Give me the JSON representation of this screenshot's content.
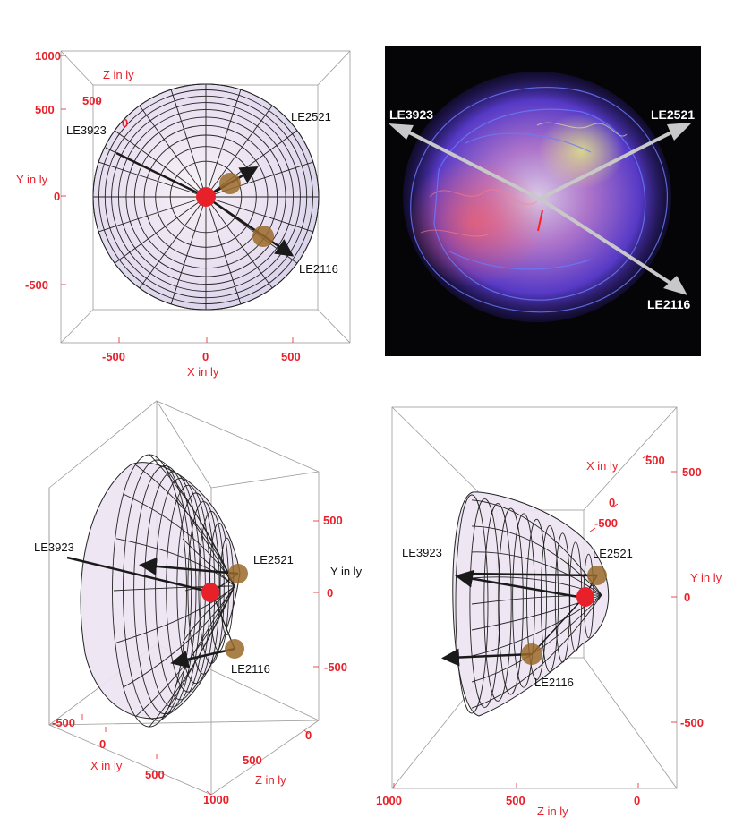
{
  "colors": {
    "axis_red": "#e8202a",
    "arrow": "#1a1a1a",
    "cas_a_arrow": "#c8c8c8",
    "dust": "#9a6a2a",
    "center": "#e8202a",
    "surface": "#ede6f2"
  },
  "panel_top_left": {
    "y_ticks": [
      "1000",
      "500",
      "0",
      "-500"
    ],
    "x_ticks": [
      "-500",
      "0",
      "500"
    ],
    "z_ticks": [
      "500",
      "0"
    ],
    "x_axis_label": "X in ly",
    "y_axis_label": "Y in ly",
    "z_axis_label": "Z in ly",
    "echoes": [
      "LE3923",
      "LE2521",
      "LE2116"
    ]
  },
  "panel_top_right": {
    "echoes": [
      "LE3923",
      "LE2521",
      "LE2116"
    ]
  },
  "panel_bottom_left": {
    "y_ticks": [
      "500",
      "0",
      "-500"
    ],
    "x_ticks": [
      "-500",
      "0",
      "500"
    ],
    "z_ticks": [
      "0",
      "500",
      "1000"
    ],
    "x_axis_label": "X in ly",
    "y_axis_label": "Y in ly",
    "z_axis_label": "Z in ly",
    "echoes": [
      "LE3923",
      "LE2521",
      "LE2116"
    ]
  },
  "panel_bottom_right": {
    "x_ticks": [
      "500",
      "0",
      "-500"
    ],
    "y_ticks": [
      "500",
      "0",
      "-500"
    ],
    "z_ticks": [
      "1000",
      "500",
      "0"
    ],
    "x_axis_label": "X in ly",
    "y_axis_label": "Y in ly",
    "z_axis_label": "Z in ly",
    "echoes": [
      "LE3923",
      "LE2521",
      "LE2116"
    ]
  }
}
